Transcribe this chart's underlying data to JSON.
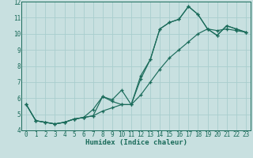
{
  "title": "",
  "xlabel": "Humidex (Indice chaleur)",
  "bg_color": "#c8e0e0",
  "grid_color": "#a8cece",
  "line_color": "#1a6b5a",
  "xlim": [
    -0.5,
    23.5
  ],
  "ylim": [
    4,
    12
  ],
  "xticks": [
    0,
    1,
    2,
    3,
    4,
    5,
    6,
    7,
    8,
    9,
    10,
    11,
    12,
    13,
    14,
    15,
    16,
    17,
    18,
    19,
    20,
    21,
    22,
    23
  ],
  "yticks": [
    4,
    5,
    6,
    7,
    8,
    9,
    10,
    11,
    12
  ],
  "line1_x": [
    0,
    1,
    2,
    3,
    4,
    5,
    6,
    7,
    8,
    9,
    10,
    11,
    12,
    13,
    14,
    15,
    16,
    17,
    18,
    19,
    20,
    21,
    22,
    23
  ],
  "line1_y": [
    5.6,
    4.6,
    4.5,
    4.4,
    4.5,
    4.7,
    4.8,
    4.9,
    6.1,
    5.8,
    5.6,
    5.6,
    7.4,
    8.4,
    10.3,
    10.7,
    10.9,
    11.7,
    11.2,
    10.3,
    9.9,
    10.5,
    10.3,
    10.1
  ],
  "line2_x": [
    0,
    1,
    2,
    3,
    4,
    5,
    6,
    7,
    8,
    9,
    10,
    11,
    12,
    13,
    14,
    15,
    16,
    17,
    18,
    19,
    20,
    21,
    22,
    23
  ],
  "line2_y": [
    5.6,
    4.6,
    4.5,
    4.4,
    4.5,
    4.7,
    4.8,
    5.3,
    6.1,
    5.9,
    6.5,
    5.6,
    7.2,
    8.4,
    10.3,
    10.7,
    10.9,
    11.7,
    11.2,
    10.3,
    9.9,
    10.5,
    10.3,
    10.1
  ],
  "line3_x": [
    0,
    1,
    2,
    3,
    4,
    5,
    6,
    7,
    8,
    9,
    10,
    11,
    12,
    13,
    14,
    15,
    16,
    17,
    18,
    19,
    20,
    21,
    22,
    23
  ],
  "line3_y": [
    5.6,
    4.6,
    4.5,
    4.4,
    4.5,
    4.7,
    4.8,
    4.9,
    5.2,
    5.4,
    5.6,
    5.6,
    6.2,
    7.0,
    7.8,
    8.5,
    9.0,
    9.5,
    10.0,
    10.3,
    10.2,
    10.3,
    10.2,
    10.1
  ],
  "tick_fontsize": 5.5,
  "xlabel_fontsize": 6.5
}
